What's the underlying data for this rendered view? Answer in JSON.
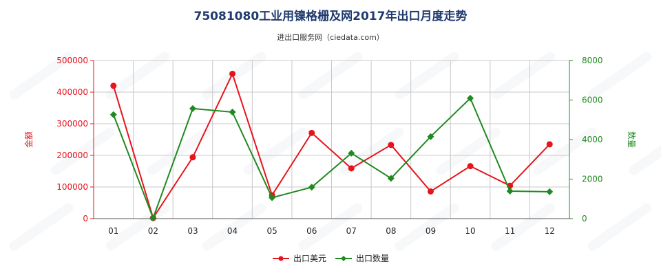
{
  "chart_data": {
    "type": "line",
    "title": "75081080工业用镍格栅及网2017年出口月度走势",
    "subtitle": "进出口服务网（ciedata.com）",
    "categories": [
      "01",
      "02",
      "03",
      "04",
      "05",
      "06",
      "07",
      "08",
      "09",
      "10",
      "11",
      "12"
    ],
    "y_left": {
      "label": "金额",
      "ticks": [
        "0",
        "100000",
        "200000",
        "300000",
        "400000",
        "500000"
      ],
      "range": [
        0,
        500000
      ],
      "color": "#e8141b"
    },
    "y_right": {
      "label": "数量",
      "ticks": [
        "0",
        "2000",
        "4000",
        "6000",
        "8000"
      ],
      "range": [
        0,
        8000
      ],
      "color": "#1f8a1f"
    },
    "series": [
      {
        "name": "出口美元",
        "axis": "left",
        "color": "#e8141b",
        "marker": "circle",
        "values": [
          420000,
          2000,
          194000,
          458000,
          74000,
          271000,
          159000,
          233000,
          86000,
          166000,
          104000,
          235000
        ]
      },
      {
        "name": "出口数量",
        "axis": "right",
        "color": "#1f8a1f",
        "marker": "diamond",
        "values": [
          5260,
          30,
          5570,
          5390,
          1060,
          1590,
          3310,
          2040,
          4150,
          6090,
          1390,
          1360
        ]
      }
    ],
    "grid": true,
    "legend_position": "bottom-center"
  }
}
